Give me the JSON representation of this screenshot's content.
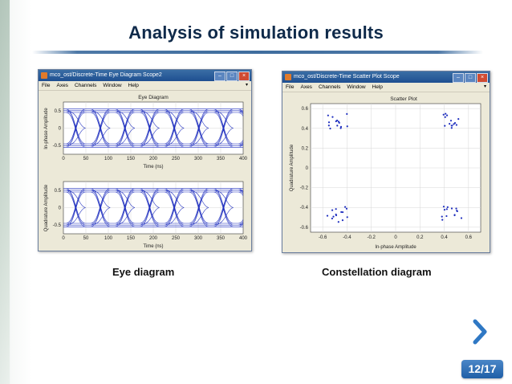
{
  "slide": {
    "title": "Analysis of simulation results",
    "page_number": "12/17",
    "next_icon": "chevron-right-icon"
  },
  "left_window": {
    "title": "mco_ost/Discrete-Time Eye Diagram Scope2",
    "menu": [
      "File",
      "Axes",
      "Channels",
      "Window",
      "Help"
    ],
    "caption": "Eye diagram",
    "plot1": {
      "title": "Eye Diagram",
      "ylabel": "In-phase Amplitude",
      "xlabel": "Time (ns)",
      "yticks": [
        "0.5",
        "0",
        "-0.5"
      ],
      "xticks": [
        "0",
        "50",
        "100",
        "150",
        "200",
        "250",
        "300",
        "350",
        "400"
      ]
    },
    "plot2": {
      "ylabel": "Quadrature Amplitude",
      "xlabel": "Time (ns)",
      "yticks": [
        "0.5",
        "0",
        "-0.5"
      ],
      "xticks": [
        "0",
        "50",
        "100",
        "150",
        "200",
        "250",
        "300",
        "350",
        "400"
      ]
    }
  },
  "right_window": {
    "title": "mco_ost/Discrete-Time Scatter Plot Scope",
    "menu": [
      "File",
      "Axes",
      "Channels",
      "Window",
      "Help"
    ],
    "caption": "Constellation diagram",
    "plot": {
      "title": "Scatter Plot",
      "xlabel": "In-phase Amplitude",
      "ylabel": "Quadrature Amplitude",
      "yticks": [
        "0.6",
        "0.4",
        "0.2",
        "0",
        "-0.2",
        "-0.4",
        "-0.6"
      ],
      "xticks": [
        "-0.6",
        "-0.4",
        "-0.2",
        "0",
        "0.2",
        "0.4",
        "0.6"
      ]
    }
  },
  "colors": {
    "title": "#0f2a4a",
    "trace": "#1f2fbf",
    "badge": "#1f5fa7",
    "arrow": "#2f78c4"
  }
}
